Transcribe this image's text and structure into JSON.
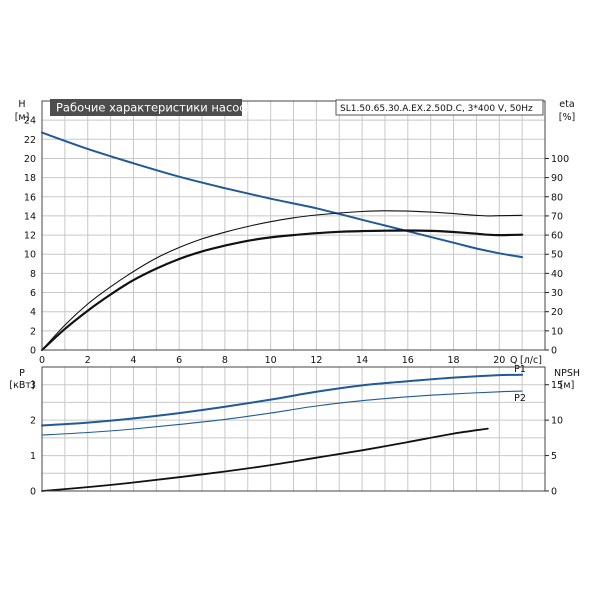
{
  "chart_data": [
    {
      "type": "line",
      "title": "Рабочие характеристики насоса",
      "subtitle": "SL1.50.65.30.A.EX.2.50D.C, 3*400 V, 50Hz",
      "xlabel": "Q [л/с]",
      "x_axis": {
        "label": "Q",
        "unit": "[л/с]",
        "lim": [
          0,
          22
        ],
        "ticks": [
          0,
          2,
          4,
          6,
          8,
          10,
          12,
          14,
          16,
          18,
          20
        ]
      },
      "y_left": {
        "label": "H",
        "unit": "[м]",
        "lim": [
          0,
          26
        ],
        "ticks": [
          0,
          2,
          4,
          6,
          8,
          10,
          12,
          14,
          16,
          18,
          20,
          22,
          24
        ]
      },
      "y_right": {
        "label": "eta",
        "unit": "[%]",
        "lim": [
          0,
          130
        ],
        "ticks": [
          0,
          10,
          20,
          30,
          40,
          50,
          60,
          70,
          80,
          90,
          100
        ]
      },
      "grid": true,
      "series": [
        {
          "axis": "left",
          "color": "#1f5a99",
          "width": 2,
          "x": [
            0,
            2,
            4,
            6,
            8,
            10,
            12,
            14,
            16,
            18,
            19,
            20,
            21
          ],
          "values": [
            22.7,
            21.0,
            19.5,
            18.1,
            16.9,
            15.8,
            14.8,
            13.6,
            12.4,
            11.2,
            10.6,
            10.1,
            9.7
          ]
        },
        {
          "axis": "right",
          "color": "#111111",
          "width": 1.1,
          "x": [
            0,
            1,
            2,
            3,
            4,
            5,
            6,
            7,
            8,
            9,
            10,
            11,
            12,
            13,
            14,
            15,
            16,
            17,
            18,
            19,
            19.5,
            20,
            21
          ],
          "values": [
            0,
            13,
            24,
            33,
            41,
            48,
            53.5,
            58,
            61.5,
            64.5,
            67,
            69,
            70.5,
            71.5,
            72.3,
            72.7,
            72.5,
            72,
            71.2,
            70.3,
            70,
            70.1,
            70.3
          ]
        },
        {
          "axis": "right",
          "color": "#111111",
          "width": 2.2,
          "x": [
            0,
            1,
            2,
            3,
            4,
            5,
            6,
            7,
            8,
            9,
            10,
            11,
            12,
            13,
            14,
            15,
            16,
            17,
            18,
            19,
            19.5,
            20,
            21
          ],
          "values": [
            0,
            11,
            20.5,
            29,
            36.5,
            42.5,
            47.5,
            51.5,
            54.5,
            57,
            58.8,
            60,
            61,
            61.7,
            62.1,
            62.3,
            62.4,
            62.2,
            61.6,
            60.7,
            60.2,
            60,
            60.2
          ]
        }
      ]
    },
    {
      "type": "line",
      "x_axis": {
        "lim": [
          0,
          22
        ]
      },
      "y_left": {
        "label": "P",
        "unit": "[кВт]",
        "lim": [
          0,
          3.5
        ],
        "ticks": [
          0,
          1,
          2,
          3
        ]
      },
      "y_right": {
        "label": "NPSH",
        "unit": "[м]",
        "lim": [
          0,
          17.5
        ],
        "ticks": [
          0,
          5,
          10,
          15
        ]
      },
      "grid": true,
      "series": [
        {
          "name": "P1",
          "axis": "left",
          "color": "#1f5a99",
          "width": 2,
          "x": [
            0,
            2,
            4,
            6,
            8,
            10,
            12,
            14,
            16,
            18,
            20,
            21
          ],
          "values": [
            1.85,
            1.93,
            2.05,
            2.2,
            2.38,
            2.58,
            2.8,
            2.98,
            3.1,
            3.2,
            3.27,
            3.28
          ]
        },
        {
          "name": "P2",
          "axis": "left",
          "color": "#1f5a99",
          "width": 1.1,
          "x": [
            0,
            2,
            4,
            6,
            8,
            10,
            12,
            14,
            16,
            18,
            20,
            21
          ],
          "values": [
            1.58,
            1.65,
            1.75,
            1.88,
            2.02,
            2.2,
            2.4,
            2.55,
            2.66,
            2.74,
            2.8,
            2.82
          ]
        },
        {
          "axis": "right",
          "color": "#111111",
          "width": 1.8,
          "x": [
            0,
            2,
            4,
            6,
            8,
            10,
            12,
            14,
            16,
            18,
            19.5
          ],
          "values": [
            0,
            0.55,
            1.2,
            1.95,
            2.75,
            3.65,
            4.7,
            5.75,
            6.9,
            8.1,
            8.8
          ]
        }
      ]
    }
  ]
}
